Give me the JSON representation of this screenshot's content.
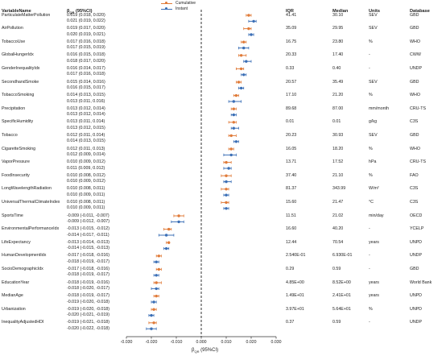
{
  "legend": {
    "items": [
      {
        "label": "Cumulative",
        "color": "#e07b39"
      },
      {
        "label": "Instant",
        "color": "#3b6fb6"
      }
    ]
  },
  "headers": {
    "variable": "VariableName",
    "beta": "β",
    "beta_sub": "QR",
    "beta_tail": " (95%CI)",
    "iqr": "IQR",
    "median": "Median",
    "units": "Units",
    "database": "Database"
  },
  "xlabel_beta": "β",
  "xlabel_sub": "QR",
  "xlabel_tail": " (95%CI)",
  "chart_data": {
    "type": "forest",
    "xlim": [
      -0.03,
      0.03
    ],
    "xticks": [
      "-0.030",
      "-0.020",
      "-0.010",
      "0.000",
      "0.010",
      "0.020",
      "0.030"
    ],
    "reference_line": 0,
    "series": [
      {
        "name": "Cumulative",
        "color": "#e07b39"
      },
      {
        "name": "Instant",
        "color": "#3b6fb6"
      }
    ],
    "rows": [
      {
        "name": "ParticulateMatterPollution",
        "iqr": "41.41",
        "median": "30.10",
        "units": "SEV",
        "database": "GBD",
        "cumulative": {
          "est": 0.019,
          "lo": 0.018,
          "hi": 0.02,
          "text": "0.019 (0.018, 0.020)"
        },
        "instant": {
          "est": 0.021,
          "lo": 0.019,
          "hi": 0.022,
          "text": "0.021 (0.019, 0.022)"
        }
      },
      {
        "name": "AirPollution",
        "iqr": "35.09",
        "median": "29.95",
        "units": "SEV",
        "database": "GBD",
        "cumulative": {
          "est": 0.019,
          "lo": 0.017,
          "hi": 0.02,
          "text": "0.019 (0.017, 0.020)"
        },
        "instant": {
          "est": 0.02,
          "lo": 0.019,
          "hi": 0.021,
          "text": "0.020 (0.019, 0.021)"
        }
      },
      {
        "name": "TobaccoUse",
        "iqr": "16.75",
        "median": "23.80",
        "units": "%",
        "database": "WHO",
        "cumulative": {
          "est": 0.017,
          "lo": 0.016,
          "hi": 0.018,
          "text": "0.017 (0.016, 0.018)"
        },
        "instant": {
          "est": 0.017,
          "lo": 0.015,
          "hi": 0.019,
          "text": "0.017 (0.015, 0.019)"
        }
      },
      {
        "name": "GlobalHungerIdx",
        "iqr": "20.33",
        "median": "17.40",
        "units": "-",
        "database": "CWW",
        "cumulative": {
          "est": 0.016,
          "lo": 0.015,
          "hi": 0.018,
          "text": "0.016 (0.015, 0.018)"
        },
        "instant": {
          "est": 0.018,
          "lo": 0.017,
          "hi": 0.02,
          "text": "0.018 (0.017, 0.020)"
        }
      },
      {
        "name": "GenderInequalityIdx",
        "iqr": "0.33",
        "median": "0.40",
        "units": "-",
        "database": "UNDP",
        "cumulative": {
          "est": 0.016,
          "lo": 0.014,
          "hi": 0.017,
          "text": "0.016 (0.014, 0.017)"
        },
        "instant": {
          "est": 0.017,
          "lo": 0.016,
          "hi": 0.018,
          "text": "0.017 (0.016, 0.018)"
        }
      },
      {
        "name": "SecondhandSmoke",
        "iqr": "20.57",
        "median": "35.49",
        "units": "SEV",
        "database": "GBD",
        "cumulative": {
          "est": 0.015,
          "lo": 0.014,
          "hi": 0.016,
          "text": "0.015 (0.014, 0.016)"
        },
        "instant": {
          "est": 0.016,
          "lo": 0.015,
          "hi": 0.017,
          "text": "0.016 (0.015, 0.017)"
        }
      },
      {
        "name": "TobaccoSmoking",
        "iqr": "17.10",
        "median": "21.20",
        "units": "%",
        "database": "WHO",
        "cumulative": {
          "est": 0.014,
          "lo": 0.013,
          "hi": 0.015,
          "text": "0.014 (0.013, 0.015)"
        },
        "instant": {
          "est": 0.013,
          "lo": 0.011,
          "hi": 0.016,
          "text": "0.013 (0.011, 0.016)"
        }
      },
      {
        "name": "Precipitation",
        "iqr": "89.68",
        "median": "87.00",
        "units": "mm/month",
        "database": "CRU-TS",
        "cumulative": {
          "est": 0.013,
          "lo": 0.012,
          "hi": 0.014,
          "text": "0.013 (0.012, 0.014)"
        },
        "instant": {
          "est": 0.013,
          "lo": 0.012,
          "hi": 0.014,
          "text": "0.013 (0.012, 0.014)"
        }
      },
      {
        "name": "SpecificHumidity",
        "iqr": "0.01",
        "median": "0.01",
        "units": "g/kg",
        "database": "C3S",
        "cumulative": {
          "est": 0.013,
          "lo": 0.011,
          "hi": 0.014,
          "text": "0.013 (0.011, 0.014)"
        },
        "instant": {
          "est": 0.013,
          "lo": 0.012,
          "hi": 0.015,
          "text": "0.013 (0.012, 0.015)"
        }
      },
      {
        "name": "Tobacco",
        "iqr": "20.23",
        "median": "30.93",
        "units": "SEV",
        "database": "GBD",
        "cumulative": {
          "est": 0.012,
          "lo": 0.011,
          "hi": 0.014,
          "text": "0.012 (0.011, 0.014)"
        },
        "instant": {
          "est": 0.014,
          "lo": 0.013,
          "hi": 0.015,
          "text": "0.014 (0.013, 0.015)"
        }
      },
      {
        "name": "CigaretteSmoking",
        "iqr": "16.05",
        "median": "18.20",
        "units": "%",
        "database": "WHO",
        "cumulative": {
          "est": 0.012,
          "lo": 0.011,
          "hi": 0.013,
          "text": "0.012 (0.011, 0.013)"
        },
        "instant": {
          "est": 0.012,
          "lo": 0.009,
          "hi": 0.014,
          "text": "0.012 (0.009, 0.014)"
        }
      },
      {
        "name": "VaporPressure",
        "iqr": "13.71",
        "median": "17.52",
        "units": "hPa",
        "database": "CRU-TS",
        "cumulative": {
          "est": 0.01,
          "lo": 0.009,
          "hi": 0.012,
          "text": "0.010 (0.009, 0.012)"
        },
        "instant": {
          "est": 0.011,
          "lo": 0.009,
          "hi": 0.012,
          "text": "0.011 (0.009, 0.012)"
        }
      },
      {
        "name": "FoodInsecurity",
        "iqr": "37.40",
        "median": "21.10",
        "units": "%",
        "database": "FAO",
        "cumulative": {
          "est": 0.01,
          "lo": 0.008,
          "hi": 0.012,
          "text": "0.010 (0.008, 0.012)"
        },
        "instant": {
          "est": 0.01,
          "lo": 0.009,
          "hi": 0.012,
          "text": "0.010 (0.009, 0.012)"
        }
      },
      {
        "name": "LongWavelengthRadiation",
        "iqr": "81.37",
        "median": "343.99",
        "units": "W/m²",
        "database": "C3S",
        "cumulative": {
          "est": 0.01,
          "lo": 0.008,
          "hi": 0.011,
          "text": "0.010 (0.008, 0.011)"
        },
        "instant": {
          "est": 0.01,
          "lo": 0.009,
          "hi": 0.011,
          "text": "0.010 (0.009, 0.011)"
        }
      },
      {
        "name": "UniversalThermalClimateIndex",
        "iqr": "15.60",
        "median": "21.47",
        "units": "°C",
        "database": "C3S",
        "cumulative": {
          "est": 0.01,
          "lo": 0.008,
          "hi": 0.011,
          "text": "0.010 (0.008, 0.011)"
        },
        "instant": {
          "est": 0.01,
          "lo": 0.009,
          "hi": 0.011,
          "text": "0.010 (0.009, 0.011)"
        }
      },
      {
        "name": "SportsTime",
        "iqr": "11.51",
        "median": "21.02",
        "units": "min/day",
        "database": "OECD",
        "cumulative": {
          "est": -0.009,
          "lo": -0.011,
          "hi": -0.007,
          "text": "-0.009 (-0.011, -0.007)"
        },
        "instant": {
          "est": -0.009,
          "lo": -0.012,
          "hi": -0.007,
          "text": "-0.009 (-0.012, -0.007)"
        }
      },
      {
        "name": "EnvironmentalPerformanceIdx",
        "iqr": "16.60",
        "median": "40.20",
        "units": "-",
        "database": "YCELP",
        "cumulative": {
          "est": -0.013,
          "lo": -0.015,
          "hi": -0.012,
          "text": "-0.013 (-0.015, -0.012)"
        },
        "instant": {
          "est": -0.014,
          "lo": -0.017,
          "hi": -0.011,
          "text": "-0.014 (-0.017, -0.011)"
        }
      },
      {
        "name": "LifeExpectancy",
        "iqr": "12.44",
        "median": "70.54",
        "units": "years",
        "database": "UNPD",
        "cumulative": {
          "est": -0.013,
          "lo": -0.014,
          "hi": -0.013,
          "text": "-0.013 (-0.014, -0.013)"
        },
        "instant": {
          "est": -0.014,
          "lo": -0.015,
          "hi": -0.013,
          "text": "-0.014 (-0.015, -0.013)"
        }
      },
      {
        "name": "HumanDevelopmentIdx",
        "iqr": "2.540E-01",
        "median": "6.930E-01",
        "units": "-",
        "database": "UNDP",
        "cumulative": {
          "est": -0.017,
          "lo": -0.018,
          "hi": -0.016,
          "text": "-0.017 (-0.018, -0.016)"
        },
        "instant": {
          "est": -0.018,
          "lo": -0.019,
          "hi": -0.017,
          "text": "-0.018 (-0.019, -0.017)"
        }
      },
      {
        "name": "SocioDemographicIdx",
        "iqr": "0.29",
        "median": "0.59",
        "units": "-",
        "database": "GBD",
        "cumulative": {
          "est": -0.017,
          "lo": -0.018,
          "hi": -0.016,
          "text": "-0.017 (-0.018, -0.016)"
        },
        "instant": {
          "est": -0.018,
          "lo": -0.019,
          "hi": -0.017,
          "text": "-0.018 (-0.019, -0.017)"
        }
      },
      {
        "name": "EducationYear",
        "iqr": "4.85E+00",
        "median": "8.52E+00",
        "units": "years",
        "database": "World Bank",
        "cumulative": {
          "est": -0.018,
          "lo": -0.019,
          "hi": -0.016,
          "text": "-0.018 (-0.019, -0.016)"
        },
        "instant": {
          "est": -0.018,
          "lo": -0.02,
          "hi": -0.017,
          "text": "-0.018 (-0.020, -0.017)"
        }
      },
      {
        "name": "MedianAge",
        "iqr": "1.49E+01",
        "median": "2.41E+01",
        "units": "years",
        "database": "UNPD",
        "cumulative": {
          "est": -0.018,
          "lo": -0.019,
          "hi": -0.017,
          "text": "-0.018 (-0.019, -0.017)"
        },
        "instant": {
          "est": -0.019,
          "lo": -0.02,
          "hi": -0.018,
          "text": "-0.019 (-0.020, -0.018)"
        }
      },
      {
        "name": "Urbanization",
        "iqr": "3.97E+01",
        "median": "5.64E+01",
        "units": "%",
        "database": "UNPD",
        "cumulative": {
          "est": -0.019,
          "lo": -0.02,
          "hi": -0.018,
          "text": "-0.019 (-0.020, -0.018)"
        },
        "instant": {
          "est": -0.02,
          "lo": -0.021,
          "hi": -0.019,
          "text": "-0.020 (-0.021, -0.019)"
        }
      },
      {
        "name": "InequalityAdjustedHDI",
        "iqr": "0.37",
        "median": "0.59",
        "units": "-",
        "database": "UNDP",
        "cumulative": {
          "est": -0.019,
          "lo": -0.021,
          "hi": -0.018,
          "text": "-0.019 (-0.021, -0.018)"
        },
        "instant": {
          "est": -0.02,
          "lo": -0.022,
          "hi": -0.018,
          "text": "-0.020 (-0.022, -0.018)"
        }
      }
    ]
  }
}
